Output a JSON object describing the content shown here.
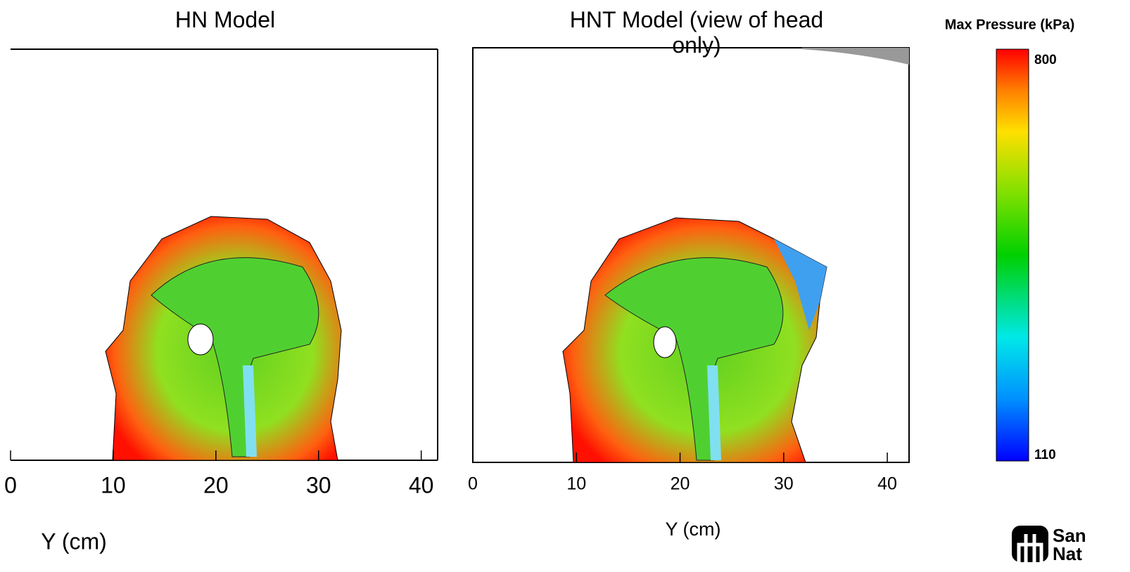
{
  "panels": [
    {
      "title": "HN Model",
      "xlabel": "Y (cm)",
      "xlim": [
        0,
        41.6
      ],
      "xticks": [
        0,
        10,
        20,
        30,
        40
      ]
    },
    {
      "title": "HNT Model (view of head only)",
      "xlabel": "Y (cm)",
      "xlim": [
        0,
        42.1
      ],
      "xticks": [
        0,
        10,
        20,
        30,
        40
      ]
    }
  ],
  "colorbar": {
    "title": "Max Pressure (kPa)",
    "max": 800,
    "min": 110
  },
  "logo": {
    "line1": "San",
    "line2": "Nat"
  }
}
